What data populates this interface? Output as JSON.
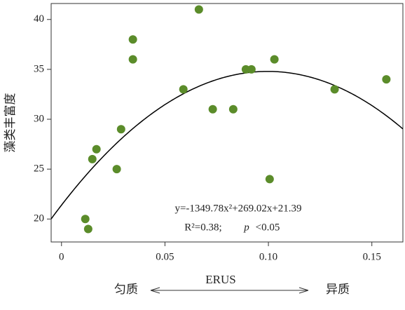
{
  "chart_data": {
    "type": "scatter",
    "x_label": "ERUS",
    "y_label": "藻类丰富度",
    "x_left_label": "匀质",
    "x_right_label": "异质",
    "color": "#5b8c2a",
    "x": [
      0.0115,
      0.0129,
      0.0149,
      0.0169,
      0.0267,
      0.0288,
      0.0345,
      0.0345,
      0.0589,
      0.0664,
      0.0731,
      0.083,
      0.0891,
      0.0918,
      0.1006,
      0.1029,
      0.132,
      0.157
    ],
    "values": [
      20,
      19,
      26,
      27,
      25,
      29,
      38,
      36,
      33,
      41,
      31,
      31,
      35,
      35,
      24,
      36,
      33,
      34
    ],
    "xlim": [
      -0.005,
      0.165
    ],
    "ylim": [
      17.7,
      41.6
    ],
    "xticks": [
      0,
      0.05,
      {
        "value": 0.1,
        "label": "0.10"
      },
      0.15
    ],
    "yticks": [
      20,
      25,
      30,
      35,
      40
    ],
    "trendline": {
      "coefficients": [
        -1349.78,
        269.02,
        21.39
      ],
      "color": "#000000"
    },
    "annotations": [
      "y=-1349.78x²+269.02x+21.39",
      "R²=0.38;",
      "p",
      "<0.05"
    ]
  }
}
